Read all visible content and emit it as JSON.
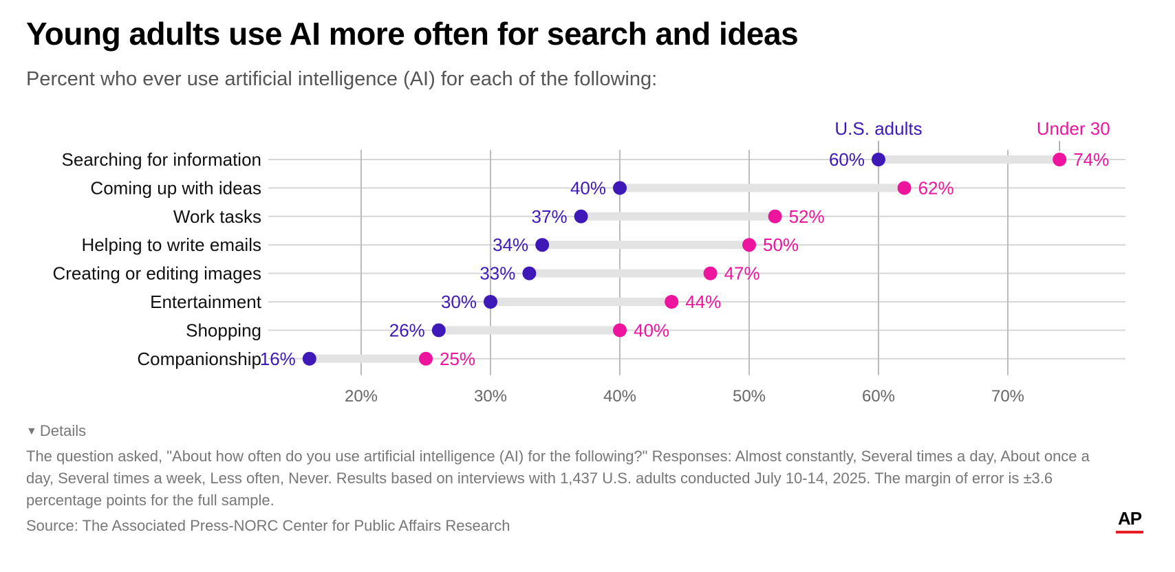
{
  "title": "Young adults use AI more often for search and ideas",
  "subtitle": "Percent who ever use artificial intelligence (AI) for each of the following:",
  "chart_data": {
    "type": "dumbbell",
    "title": "Young adults use AI more often for search and ideas",
    "subtitle": "Percent who ever use artificial intelligence (AI) for each of the following:",
    "xlabel": "",
    "ylabel": "",
    "xlim": [
      12.5,
      77.5
    ],
    "x_ticks": [
      20,
      30,
      40,
      50,
      60,
      70
    ],
    "x_tick_labels": [
      "20%",
      "30%",
      "40%",
      "50%",
      "60%",
      "70%"
    ],
    "grid": true,
    "legend": "top-right (direct labels above first row)",
    "categories": [
      "Searching for information",
      "Coming up with ideas",
      "Work tasks",
      "Helping to write emails",
      "Creating or editing images",
      "Entertainment",
      "Shopping",
      "Companionship"
    ],
    "series": [
      {
        "name": "U.S. adults",
        "color": "#3f19b8",
        "values": [
          60,
          40,
          37,
          34,
          33,
          30,
          26,
          16
        ]
      },
      {
        "name": "Under 30",
        "color": "#ee159e",
        "values": [
          74,
          62,
          52,
          50,
          47,
          44,
          40,
          25
        ]
      }
    ],
    "value_suffix": "%"
  },
  "footer": {
    "details_label": "Details",
    "notes": "The question asked, \"About how often do you use artificial intelligence (AI) for the following?\" Responses: Almost constantly, Several times a day, About once a day, Several times a week, Less often, Never. Results based on interviews with 1,437 U.S. adults conducted July 10-14, 2025. The margin of error is ±3.6 percentage points for the full sample.",
    "source": "Source: The Associated Press-NORC Center for Public Affairs Research",
    "logo_text": "AP",
    "logo_bar_color": "#e81e25"
  }
}
